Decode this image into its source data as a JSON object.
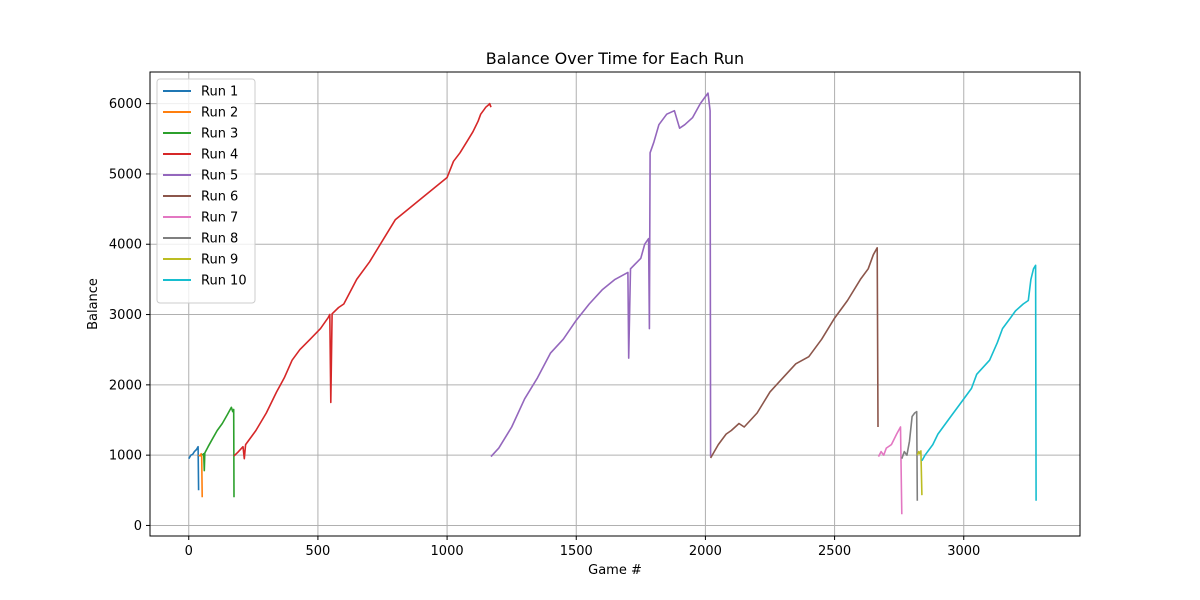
{
  "chart_data": {
    "type": "line",
    "title": "Balance Over Time for Each Run",
    "xlabel": "Game #",
    "ylabel": "Balance",
    "xlim": [
      -150,
      3450
    ],
    "ylim": [
      -150,
      6450
    ],
    "xticks": [
      0,
      500,
      1000,
      1500,
      2000,
      2500,
      3000
    ],
    "yticks": [
      0,
      1000,
      2000,
      3000,
      4000,
      5000,
      6000
    ],
    "grid": true,
    "legend": "top-left",
    "series": [
      {
        "name": "Run 1",
        "color": "#1f77b4",
        "points": [
          [
            0,
            950
          ],
          [
            8,
            1000
          ],
          [
            15,
            1010
          ],
          [
            22,
            1050
          ],
          [
            30,
            1080
          ],
          [
            36,
            1120
          ],
          [
            38,
            500
          ]
        ]
      },
      {
        "name": "Run 2",
        "color": "#ff7f0e",
        "points": [
          [
            38,
            1000
          ],
          [
            44,
            990
          ],
          [
            48,
            1020
          ],
          [
            50,
            980
          ],
          [
            52,
            400
          ]
        ]
      },
      {
        "name": "Run 3",
        "color": "#2ca02c",
        "points": [
          [
            52,
            1000
          ],
          [
            58,
            1020
          ],
          [
            60,
            780
          ],
          [
            62,
            1030
          ],
          [
            75,
            1120
          ],
          [
            90,
            1220
          ],
          [
            110,
            1350
          ],
          [
            130,
            1450
          ],
          [
            150,
            1580
          ],
          [
            165,
            1680
          ],
          [
            170,
            1620
          ],
          [
            174,
            1650
          ],
          [
            175,
            400
          ]
        ]
      },
      {
        "name": "Run 4",
        "color": "#d62728",
        "points": [
          [
            175,
            990
          ],
          [
            190,
            1040
          ],
          [
            210,
            1120
          ],
          [
            215,
            950
          ],
          [
            220,
            1150
          ],
          [
            260,
            1350
          ],
          [
            300,
            1600
          ],
          [
            340,
            1900
          ],
          [
            370,
            2100
          ],
          [
            400,
            2350
          ],
          [
            430,
            2500
          ],
          [
            470,
            2650
          ],
          [
            510,
            2800
          ],
          [
            540,
            2960
          ],
          [
            546,
            3000
          ],
          [
            550,
            1750
          ],
          [
            555,
            3010
          ],
          [
            580,
            3100
          ],
          [
            600,
            3150
          ],
          [
            650,
            3500
          ],
          [
            700,
            3750
          ],
          [
            750,
            4050
          ],
          [
            800,
            4350
          ],
          [
            850,
            4500
          ],
          [
            900,
            4650
          ],
          [
            950,
            4800
          ],
          [
            1000,
            4950
          ],
          [
            1025,
            5180
          ],
          [
            1050,
            5300
          ],
          [
            1080,
            5480
          ],
          [
            1100,
            5600
          ],
          [
            1120,
            5750
          ],
          [
            1130,
            5850
          ],
          [
            1140,
            5900
          ],
          [
            1150,
            5950
          ],
          [
            1160,
            5980
          ],
          [
            1165,
            6000
          ],
          [
            1170,
            5950
          ]
        ]
      },
      {
        "name": "Run 5",
        "color": "#9467bd",
        "points": [
          [
            1170,
            980
          ],
          [
            1200,
            1100
          ],
          [
            1250,
            1400
          ],
          [
            1300,
            1800
          ],
          [
            1350,
            2100
          ],
          [
            1400,
            2450
          ],
          [
            1450,
            2650
          ],
          [
            1500,
            2920
          ],
          [
            1550,
            3150
          ],
          [
            1600,
            3350
          ],
          [
            1650,
            3500
          ],
          [
            1700,
            3600
          ],
          [
            1703,
            2380
          ],
          [
            1710,
            3650
          ],
          [
            1750,
            3800
          ],
          [
            1765,
            4000
          ],
          [
            1780,
            4080
          ],
          [
            1783,
            2800
          ],
          [
            1786,
            5300
          ],
          [
            1800,
            5450
          ],
          [
            1820,
            5700
          ],
          [
            1850,
            5850
          ],
          [
            1880,
            5900
          ],
          [
            1900,
            5650
          ],
          [
            1920,
            5700
          ],
          [
            1950,
            5800
          ],
          [
            1980,
            6000
          ],
          [
            2000,
            6100
          ],
          [
            2010,
            6150
          ],
          [
            2018,
            5900
          ],
          [
            2020,
            980
          ]
        ]
      },
      {
        "name": "Run 6",
        "color": "#8c564b",
        "points": [
          [
            2020,
            960
          ],
          [
            2050,
            1150
          ],
          [
            2080,
            1300
          ],
          [
            2100,
            1350
          ],
          [
            2130,
            1450
          ],
          [
            2150,
            1400
          ],
          [
            2200,
            1600
          ],
          [
            2250,
            1900
          ],
          [
            2300,
            2100
          ],
          [
            2350,
            2300
          ],
          [
            2400,
            2400
          ],
          [
            2450,
            2650
          ],
          [
            2500,
            2950
          ],
          [
            2550,
            3200
          ],
          [
            2600,
            3500
          ],
          [
            2630,
            3650
          ],
          [
            2650,
            3850
          ],
          [
            2665,
            3950
          ],
          [
            2668,
            1400
          ]
        ]
      },
      {
        "name": "Run 7",
        "color": "#e377c2",
        "points": [
          [
            2670,
            980
          ],
          [
            2680,
            1050
          ],
          [
            2690,
            1000
          ],
          [
            2700,
            1100
          ],
          [
            2720,
            1150
          ],
          [
            2740,
            1300
          ],
          [
            2755,
            1400
          ],
          [
            2760,
            160
          ]
        ]
      },
      {
        "name": "Run 8",
        "color": "#7f7f7f",
        "points": [
          [
            2760,
            950
          ],
          [
            2770,
            1050
          ],
          [
            2780,
            1000
          ],
          [
            2790,
            1200
          ],
          [
            2800,
            1550
          ],
          [
            2810,
            1600
          ],
          [
            2818,
            1620
          ],
          [
            2820,
            350
          ]
        ]
      },
      {
        "name": "Run 9",
        "color": "#bcbd22",
        "points": [
          [
            2820,
            1000
          ],
          [
            2826,
            1050
          ],
          [
            2830,
            1020
          ],
          [
            2834,
            1060
          ],
          [
            2838,
            430
          ]
        ]
      },
      {
        "name": "Run 10",
        "color": "#17becf",
        "points": [
          [
            2838,
            920
          ],
          [
            2850,
            1000
          ],
          [
            2880,
            1150
          ],
          [
            2900,
            1300
          ],
          [
            2950,
            1550
          ],
          [
            3000,
            1800
          ],
          [
            3030,
            1950
          ],
          [
            3050,
            2150
          ],
          [
            3100,
            2350
          ],
          [
            3130,
            2600
          ],
          [
            3150,
            2800
          ],
          [
            3180,
            2950
          ],
          [
            3200,
            3050
          ],
          [
            3230,
            3150
          ],
          [
            3250,
            3200
          ],
          [
            3260,
            3500
          ],
          [
            3270,
            3650
          ],
          [
            3278,
            3700
          ],
          [
            3280,
            350
          ]
        ]
      }
    ]
  }
}
